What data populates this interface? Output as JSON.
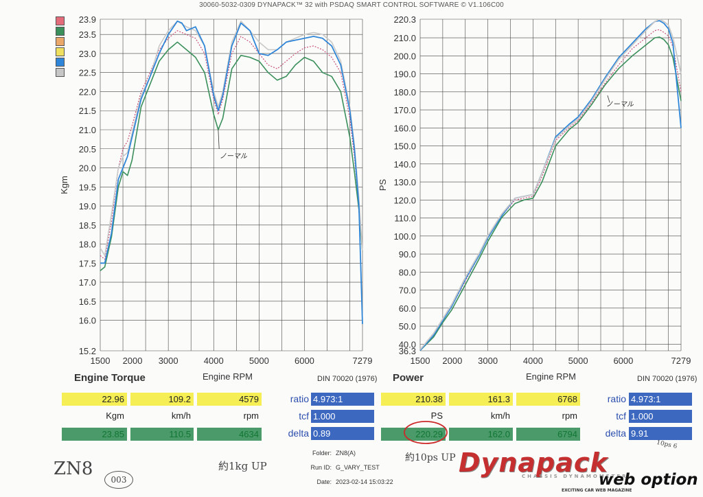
{
  "header": "30060-5032-0309 DYNAPACK™ 32 with PSDAQ SMART CONTROL SOFTWARE © V1.106C00",
  "legend_colors": [
    "#e46b7a",
    "#3a8f5a",
    "#e9a76a",
    "#f0e060",
    "#2f86d8",
    "#c6c6c6"
  ],
  "chart_data": [
    {
      "type": "line",
      "title": "Engine Torque",
      "xlabel": "Engine RPM",
      "ylabel": "Kgm",
      "standard": "DIN 70020 (1976)",
      "xlim": [
        1500,
        7279
      ],
      "ylim": [
        15.2,
        23.9
      ],
      "x_ticks": [
        "1500",
        "2000",
        "3000",
        "4000",
        "5000",
        "6000",
        "7279"
      ],
      "y_ticks": [
        "15.2",
        "16.0",
        "16.5",
        "17.0",
        "17.5",
        "18.0",
        "18.5",
        "19.0",
        "19.5",
        "20.0",
        "20.5",
        "21.0",
        "21.5",
        "22.0",
        "22.5",
        "23.0",
        "23.5",
        "23.9"
      ],
      "annotation": "ノーマル",
      "series": [
        {
          "color": "#3a8f5a",
          "x": [
            1500,
            1600,
            1750,
            1900,
            2000,
            2100,
            2200,
            2400,
            2600,
            2800,
            3000,
            3200,
            3400,
            3600,
            3800,
            4000,
            4100,
            4200,
            4400,
            4600,
            4800,
            5000,
            5200,
            5400,
            5600,
            5800,
            6000,
            6200,
            6400,
            6600,
            6800,
            7000,
            7100,
            7200,
            7279
          ],
          "y": [
            17.3,
            17.4,
            18.2,
            19.5,
            19.9,
            19.8,
            20.2,
            21.6,
            22.2,
            22.8,
            23.1,
            23.3,
            23.1,
            22.9,
            22.5,
            21.4,
            21.0,
            21.3,
            22.6,
            22.95,
            22.9,
            22.8,
            22.5,
            22.3,
            22.4,
            22.7,
            22.9,
            22.8,
            22.5,
            22.4,
            22.0,
            20.8,
            19.9,
            18.9,
            17.8
          ]
        },
        {
          "color": "#c8507a",
          "x": [
            1500,
            1600,
            1750,
            1900,
            2000,
            2100,
            2200,
            2400,
            2600,
            2800,
            3000,
            3200,
            3400,
            3600,
            3800,
            4000,
            4100,
            4200,
            4400,
            4600,
            4800,
            5000,
            5200,
            5400,
            5600,
            5800,
            6000,
            6200,
            6400,
            6600,
            6800,
            7000,
            7100,
            7200,
            7279
          ],
          "y": [
            17.7,
            17.6,
            18.6,
            20.0,
            20.5,
            20.7,
            21.1,
            22.0,
            22.5,
            23.1,
            23.4,
            23.6,
            23.5,
            23.4,
            23.0,
            21.8,
            21.4,
            21.8,
            23.0,
            23.45,
            23.3,
            23.0,
            22.7,
            22.6,
            22.8,
            23.0,
            23.15,
            23.2,
            23.1,
            22.9,
            22.5,
            21.3,
            20.3,
            19.0,
            17.9
          ]
        },
        {
          "color": "#c9c9c9",
          "x": [
            1500,
            1600,
            1750,
            1900,
            2000,
            2100,
            2200,
            2400,
            2600,
            2800,
            3000,
            3200,
            3400,
            3600,
            3800,
            4000,
            4100,
            4200,
            4400,
            4600,
            4800,
            5000,
            5200,
            5400,
            5600,
            5800,
            6000,
            6200,
            6400,
            6600,
            6800,
            7000,
            7100,
            7200,
            7279
          ],
          "y": [
            17.9,
            17.7,
            18.8,
            20.0,
            20.3,
            20.4,
            20.9,
            21.9,
            22.4,
            23.2,
            23.6,
            23.85,
            23.7,
            23.6,
            23.2,
            22.0,
            21.6,
            22.0,
            23.3,
            23.85,
            23.6,
            23.3,
            23.1,
            23.1,
            23.3,
            23.4,
            23.5,
            23.55,
            23.5,
            23.3,
            22.8,
            21.6,
            20.6,
            19.2,
            17.8
          ]
        },
        {
          "color": "#2f86d8",
          "x": [
            1500,
            1600,
            1750,
            1900,
            2000,
            2100,
            2200,
            2400,
            2600,
            2800,
            3000,
            3200,
            3300,
            3400,
            3600,
            3800,
            4000,
            4100,
            4200,
            4400,
            4600,
            4800,
            5000,
            5200,
            5400,
            5600,
            5800,
            6000,
            6200,
            6400,
            6600,
            6800,
            7000,
            7100,
            7200,
            7279
          ],
          "y": [
            17.5,
            17.5,
            18.3,
            19.7,
            20.0,
            20.3,
            20.8,
            21.8,
            22.4,
            23.0,
            23.5,
            23.85,
            23.8,
            23.6,
            23.7,
            23.2,
            21.9,
            21.5,
            21.9,
            23.2,
            23.8,
            23.6,
            23.0,
            22.95,
            23.1,
            23.3,
            23.35,
            23.4,
            23.45,
            23.4,
            23.2,
            22.7,
            21.5,
            20.5,
            19.0,
            15.9
          ]
        }
      ]
    },
    {
      "type": "line",
      "title": "Power",
      "xlabel": "Engine RPM",
      "ylabel": "PS",
      "standard": "DIN 70020 (1976)",
      "xlim": [
        1500,
        7279
      ],
      "ylim": [
        36.3,
        220.3
      ],
      "x_ticks": [
        "1500",
        "2000",
        "3000",
        "4000",
        "5000",
        "6000",
        "7279"
      ],
      "y_ticks": [
        "36.3",
        "40.0",
        "50.0",
        "60.0",
        "70.0",
        "80.0",
        "90.0",
        "100.0",
        "110.0",
        "120.0",
        "130.0",
        "140.0",
        "150.0",
        "160.0",
        "170.0",
        "180.0",
        "190.0",
        "200.0",
        "210.0",
        "220.3"
      ],
      "annotation": "ノーマル",
      "series": [
        {
          "color": "#3a8f5a",
          "x": [
            1500,
            1800,
            2000,
            2200,
            2500,
            2800,
            3000,
            3300,
            3600,
            3800,
            4000,
            4200,
            4500,
            4800,
            5000,
            5300,
            5600,
            5900,
            6200,
            6500,
            6700,
            6800,
            6900,
            7000,
            7100,
            7279
          ],
          "y": [
            36.5,
            44,
            52,
            59,
            73,
            87,
            97,
            110,
            118,
            120,
            121,
            130,
            150,
            159,
            163,
            173,
            184,
            193,
            200,
            206,
            210,
            210.4,
            209,
            206,
            199,
            175
          ]
        },
        {
          "color": "#c8507a",
          "x": [
            1500,
            1800,
            2000,
            2200,
            2500,
            2800,
            3000,
            3300,
            3600,
            3800,
            4000,
            4200,
            4500,
            4800,
            5000,
            5300,
            5600,
            5900,
            6200,
            6500,
            6700,
            6800,
            6900,
            7000,
            7100,
            7279
          ],
          "y": [
            36.5,
            45,
            53,
            61,
            75,
            89,
            99,
            111,
            120,
            121,
            122,
            133,
            153,
            160,
            164,
            174,
            185,
            195,
            204,
            210,
            214,
            214.5,
            213,
            211,
            205,
            180
          ]
        },
        {
          "color": "#2f86d8",
          "x": [
            1500,
            1800,
            2000,
            2200,
            2500,
            2800,
            3000,
            3300,
            3600,
            3800,
            4000,
            4200,
            4500,
            4800,
            5000,
            5300,
            5600,
            5900,
            6200,
            6500,
            6700,
            6800,
            6900,
            7000,
            7100,
            7279
          ],
          "y": [
            36.5,
            45,
            53,
            61,
            76,
            89,
            99,
            111,
            121,
            122,
            123,
            135,
            155,
            162,
            166,
            176,
            188,
            199,
            207,
            215,
            219,
            219.5,
            218,
            215,
            207,
            160
          ]
        },
        {
          "color": "#c9c9c9",
          "x": [
            1500,
            1800,
            2000,
            2200,
            2500,
            2800,
            3000,
            3300,
            3600,
            3800,
            4000,
            4200,
            4500,
            4800,
            5000,
            5300,
            5600,
            5900,
            6200,
            6500,
            6700,
            6800,
            6900,
            7000,
            7100,
            7279
          ],
          "y": [
            37,
            46,
            54,
            62,
            77,
            90,
            100,
            112,
            121,
            122,
            123,
            135,
            154,
            161,
            165,
            175,
            187,
            198,
            206,
            214,
            219,
            220.3,
            219,
            217,
            210,
            190
          ]
        }
      ]
    }
  ],
  "torque_panel": {
    "top_values": [
      "22.96",
      "109.2",
      "4579"
    ],
    "units": [
      "Kgm",
      "km/h",
      "rpm"
    ],
    "bottom_values": [
      "23.85",
      "110.5",
      "4634"
    ],
    "ratio_label": "ratio",
    "ratio_value": "4.973:1",
    "tcf_label": "tcf",
    "tcf_value": "1.000",
    "delta_label": "delta",
    "delta_value": "0.89"
  },
  "power_panel": {
    "top_values": [
      "210.38",
      "161.3",
      "6768"
    ],
    "units": [
      "PS",
      "km/h",
      "rpm"
    ],
    "bottom_values": [
      "220.29",
      "162.0",
      "6794"
    ],
    "ratio_label": "ratio",
    "ratio_value": "4.973:1",
    "tcf_label": "tcf",
    "tcf_value": "1.000",
    "delta_label": "delta",
    "delta_value": "9.91"
  },
  "info": {
    "folder_label": "Folder:",
    "folder_value": "ZN8(A)",
    "run_label": "Run ID:",
    "run_value": "G_VARY_TEST",
    "date_label": "Date:",
    "date_value": "2023-02-14 15:03:22"
  },
  "handwriting": {
    "model": "ZN8",
    "number": "003",
    "torque_note": "約1kg UP",
    "power_note": "約10ps UP",
    "corner_note": "10ps 6"
  },
  "logo": {
    "main": "Dynapack",
    "sub": "CHASSIS DYNAMOMETER",
    "web": "web option",
    "tagline": "EXCITING CAR WEB MAGAZINE"
  }
}
